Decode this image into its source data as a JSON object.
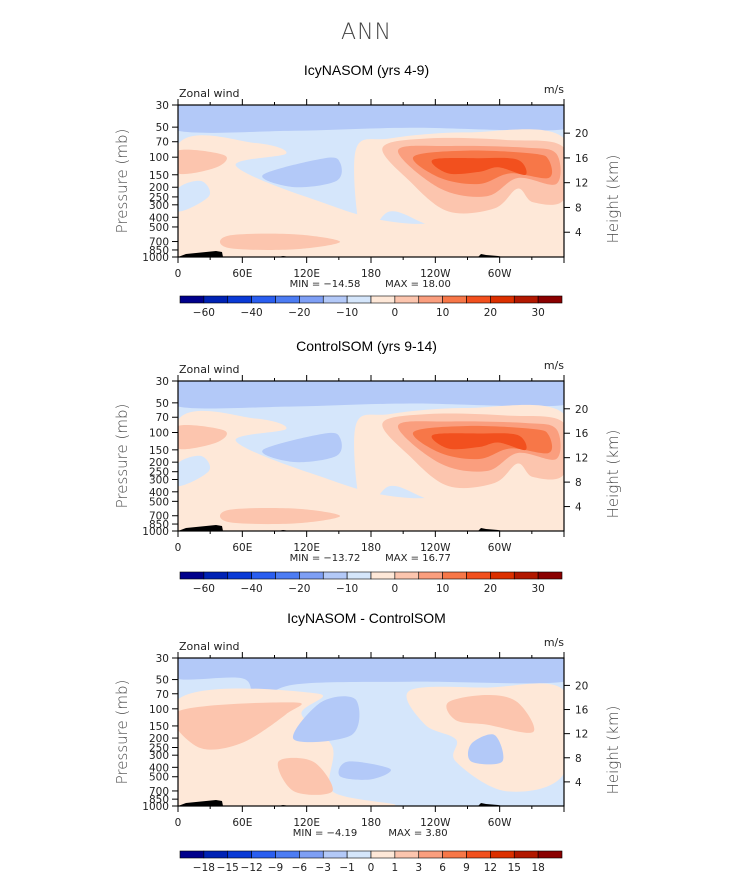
{
  "main_title": "ANN",
  "chart_data": [
    {
      "type": "heatmap",
      "title": "IcyNASOM (yrs 4-9)",
      "left_label": "Zonal wind",
      "right_label": "m/s",
      "xlabel": "",
      "ylabel": "Pressure (mb)",
      "ylabel_right": "Height (km)",
      "x_ticks": [
        "0",
        "60E",
        "120E",
        "180",
        "120W",
        "60W"
      ],
      "y_ticks": [
        "30",
        "50",
        "70",
        "100",
        "150",
        "200",
        "250",
        "300",
        "400",
        "500",
        "700",
        "850",
        "1000"
      ],
      "y_ticks_right": [
        "20",
        "16",
        "12",
        "8",
        "4"
      ],
      "min_label": "MIN = -14.58",
      "max_label": "MAX = 18.00",
      "min": -14.58,
      "max": 18.0,
      "colorbar_labels": [
        "-60",
        "-40",
        "-20",
        "-10",
        "0",
        "10",
        "20",
        "30"
      ],
      "colorbar_levels": [
        -70,
        -60,
        -50,
        -40,
        -30,
        -20,
        -10,
        -5,
        0,
        5,
        10,
        15,
        20,
        25,
        30
      ]
    },
    {
      "type": "heatmap",
      "title": "ControlSOM (yrs 9-14)",
      "left_label": "Zonal wind",
      "right_label": "m/s",
      "xlabel": "",
      "ylabel": "Pressure (mb)",
      "ylabel_right": "Height (km)",
      "x_ticks": [
        "0",
        "60E",
        "120E",
        "180",
        "120W",
        "60W"
      ],
      "y_ticks": [
        "30",
        "50",
        "70",
        "100",
        "150",
        "200",
        "250",
        "300",
        "400",
        "500",
        "700",
        "850",
        "1000"
      ],
      "y_ticks_right": [
        "20",
        "16",
        "12",
        "8",
        "4"
      ],
      "min_label": "MIN = -13.72",
      "max_label": "MAX = 16.77",
      "min": -13.72,
      "max": 16.77,
      "colorbar_labels": [
        "-60",
        "-40",
        "-20",
        "-10",
        "0",
        "10",
        "20",
        "30"
      ],
      "colorbar_levels": [
        -70,
        -60,
        -50,
        -40,
        -30,
        -20,
        -10,
        -5,
        0,
        5,
        10,
        15,
        20,
        25,
        30
      ]
    },
    {
      "type": "heatmap",
      "title": "IcyNASOM - ControlSOM",
      "left_label": "Zonal wind",
      "right_label": "m/s",
      "xlabel": "",
      "ylabel": "Pressure (mb)",
      "ylabel_right": "Height (km)",
      "x_ticks": [
        "0",
        "60E",
        "120E",
        "180",
        "120W",
        "60W"
      ],
      "y_ticks": [
        "30",
        "50",
        "70",
        "100",
        "150",
        "200",
        "250",
        "300",
        "400",
        "500",
        "700",
        "850",
        "1000"
      ],
      "y_ticks_right": [
        "20",
        "16",
        "12",
        "8",
        "4"
      ],
      "min_label": "MIN = -4.19",
      "max_label": "MAX = 3.80",
      "min": -4.19,
      "max": 3.8,
      "colorbar_labels": [
        "-18",
        "-15",
        "-12",
        "-9",
        "-6",
        "-3",
        "-1",
        "0",
        "1",
        "3",
        "6",
        "9",
        "12",
        "15",
        "18"
      ],
      "colorbar_levels": [
        -18,
        -15,
        -12,
        -9,
        -6,
        -3,
        -1,
        0,
        1,
        3,
        6,
        9,
        12,
        15,
        18
      ]
    }
  ],
  "colorbar_colors": [
    "#00008b",
    "#0022b4",
    "#0a3ad6",
    "#2a5ef0",
    "#4c7cf3",
    "#7e9ff5",
    "#b3c9f8",
    "#d5e6fb",
    "#fee8d8",
    "#fcc5ae",
    "#fa9e7e",
    "#f77748",
    "#f2501e",
    "#dc3000",
    "#b21800",
    "#8a0000"
  ]
}
